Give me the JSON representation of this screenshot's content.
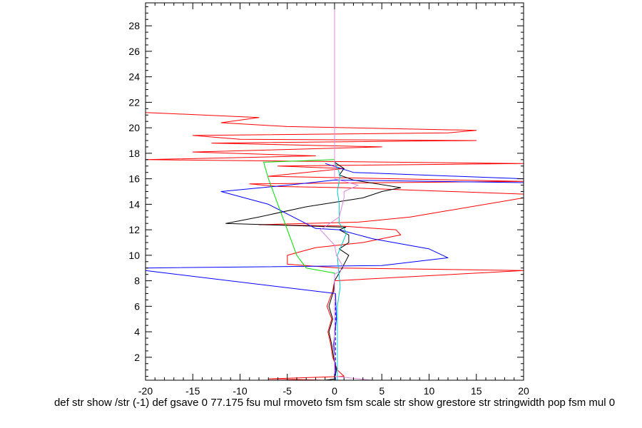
{
  "chart_data": {
    "type": "line",
    "title": "",
    "xlabel": "def str show /str (-1) def gsave 0 77.175 fsu mul rmoveto fsm fsm scale str show grestore str stringwidth pop fsm mul 0",
    "ylabel": "",
    "xlim": [
      -20,
      20
    ],
    "ylim": [
      0.2,
      29.8
    ],
    "x_ticks": [
      -20,
      -15,
      -10,
      -5,
      0,
      5,
      10,
      15,
      20
    ],
    "x_tick_labels": [
      "-20",
      "-15",
      "-10",
      "-5",
      "0",
      "5",
      "10",
      "15",
      "20"
    ],
    "y_ticks": [
      2,
      4,
      6,
      8,
      10,
      12,
      14,
      16,
      18,
      20,
      22,
      24,
      26,
      28
    ],
    "y_tick_labels": [
      "2",
      "4",
      "6",
      "8",
      "10",
      "12",
      "14",
      "16",
      "18",
      "20",
      "22",
      "24",
      "26",
      "28"
    ],
    "grid": false,
    "legend": "none",
    "series": [
      {
        "color": "#ff0000",
        "points": [
          [
            -1,
            0.2
          ],
          [
            -7,
            0.3
          ],
          [
            1,
            0.5
          ],
          [
            0.3,
            1.0
          ],
          [
            -0.2,
            2.0
          ],
          [
            -0.4,
            3.0
          ],
          [
            -0.7,
            4.0
          ],
          [
            -0.3,
            5.0
          ],
          [
            -0.8,
            6.0
          ],
          [
            -0.2,
            7.2
          ],
          [
            0,
            8.0
          ],
          [
            20,
            8.8
          ],
          [
            0.5,
            9.0
          ],
          [
            -5,
            9.3
          ],
          [
            -5,
            10.0
          ],
          [
            -2,
            10.6
          ],
          [
            3,
            11.0
          ],
          [
            7,
            11.6
          ],
          [
            6.5,
            12.0
          ],
          [
            0.5,
            12.3
          ],
          [
            -8,
            12.4
          ],
          [
            -3,
            12.5
          ],
          [
            2.5,
            12.6
          ],
          [
            8,
            13.0
          ],
          [
            12,
            13.5
          ],
          [
            20,
            14.5
          ],
          [
            20,
            14.8
          ],
          [
            1,
            15.3
          ],
          [
            -6,
            15.4
          ],
          [
            -9,
            15.6
          ],
          [
            20,
            15.8
          ],
          [
            -7,
            16.2
          ],
          [
            1,
            16.8
          ],
          [
            -6,
            17.0
          ],
          [
            20,
            17.2
          ],
          [
            -20,
            17.5
          ],
          [
            -2,
            17.8
          ],
          [
            -15,
            18.1
          ],
          [
            5,
            18.5
          ],
          [
            -13,
            18.8
          ],
          [
            15,
            19.0
          ],
          [
            -10,
            19.1
          ],
          [
            -15,
            19.4
          ],
          [
            12,
            19.6
          ],
          [
            15,
            19.8
          ],
          [
            -5,
            20.1
          ],
          [
            -12,
            20.4
          ],
          [
            -8,
            20.8
          ],
          [
            -20,
            21.2
          ],
          [
            -20,
            21.6
          ]
        ]
      },
      {
        "color": "#000000",
        "points": [
          [
            -1,
            0.2
          ],
          [
            0,
            0.3
          ],
          [
            0.2,
            1.0
          ],
          [
            -0.1,
            2.0
          ],
          [
            -0.3,
            3.0
          ],
          [
            -0.6,
            4.0
          ],
          [
            -0.2,
            5.0
          ],
          [
            -0.6,
            6.0
          ],
          [
            -0.1,
            7.2
          ],
          [
            0,
            8.0
          ],
          [
            0.8,
            9.0
          ],
          [
            1.5,
            10.0
          ],
          [
            0.5,
            10.5
          ],
          [
            1.5,
            11.0
          ],
          [
            1.5,
            11.6
          ],
          [
            0.5,
            12.0
          ],
          [
            1.2,
            12.2
          ],
          [
            -11.5,
            12.5
          ],
          [
            -8,
            13.0
          ],
          [
            -3,
            13.8
          ],
          [
            3,
            14.5
          ],
          [
            5,
            15.0
          ],
          [
            7,
            15.3
          ],
          [
            2,
            15.9
          ],
          [
            0.5,
            16.3
          ],
          [
            1,
            16.8
          ],
          [
            0,
            17.3
          ]
        ]
      },
      {
        "color": "#0000ff",
        "points": [
          [
            0,
            0.2
          ],
          [
            0.1,
            1.0
          ],
          [
            -0.1,
            3.0
          ],
          [
            0.2,
            5.0
          ],
          [
            0.1,
            7.0
          ],
          [
            -20,
            8.8
          ],
          [
            -20,
            9.0
          ],
          [
            5,
            9.2
          ],
          [
            12,
            9.8
          ],
          [
            10,
            10.5
          ],
          [
            4,
            11.3
          ],
          [
            0.5,
            12.0
          ],
          [
            -2,
            12.1
          ],
          [
            -7,
            14.0
          ],
          [
            -12,
            15.0
          ],
          [
            -5,
            15.5
          ],
          [
            0,
            15.9
          ],
          [
            20,
            15.7
          ],
          [
            20,
            16.0
          ],
          [
            2,
            16.5
          ],
          [
            -1,
            17.2
          ]
        ]
      },
      {
        "color": "#00dd00",
        "points": [
          [
            0,
            0.2
          ],
          [
            0,
            8.0
          ],
          [
            0,
            8.6
          ],
          [
            -3,
            9.0
          ],
          [
            -4,
            10.0
          ],
          [
            -5,
            12.0
          ],
          [
            -6,
            14.0
          ],
          [
            -7,
            16.0
          ],
          [
            -7.5,
            17.3
          ],
          [
            0,
            17.5
          ]
        ]
      },
      {
        "color": "#00cccc",
        "points": [
          [
            0.3,
            0.2
          ],
          [
            0.3,
            6.0
          ],
          [
            0.6,
            7.5
          ],
          [
            0.4,
            9.0
          ],
          [
            0.3,
            10.0
          ],
          [
            1.3,
            11.8
          ],
          [
            0.5,
            12.5
          ],
          [
            0.5,
            14.0
          ],
          [
            0.3,
            15.0
          ],
          [
            0.6,
            16.3
          ],
          [
            0.1,
            17.2
          ]
        ]
      },
      {
        "color": "#dd88dd",
        "points": [
          [
            4,
            0.2
          ],
          [
            0,
            0.5
          ],
          [
            0,
            8.5
          ],
          [
            1,
            9.0
          ],
          [
            0.2,
            10.0
          ],
          [
            0,
            10.8
          ],
          [
            -1.5,
            12.0
          ],
          [
            0.5,
            13.0
          ],
          [
            1,
            14.5
          ],
          [
            1,
            15.0
          ],
          [
            2.5,
            15.5
          ],
          [
            0,
            16.0
          ],
          [
            0,
            29.8
          ]
        ]
      },
      {
        "color": "#0000ff",
        "dashed": true,
        "points": [
          [
            0.1,
            0.2
          ],
          [
            0.1,
            6.5
          ]
        ]
      }
    ]
  }
}
